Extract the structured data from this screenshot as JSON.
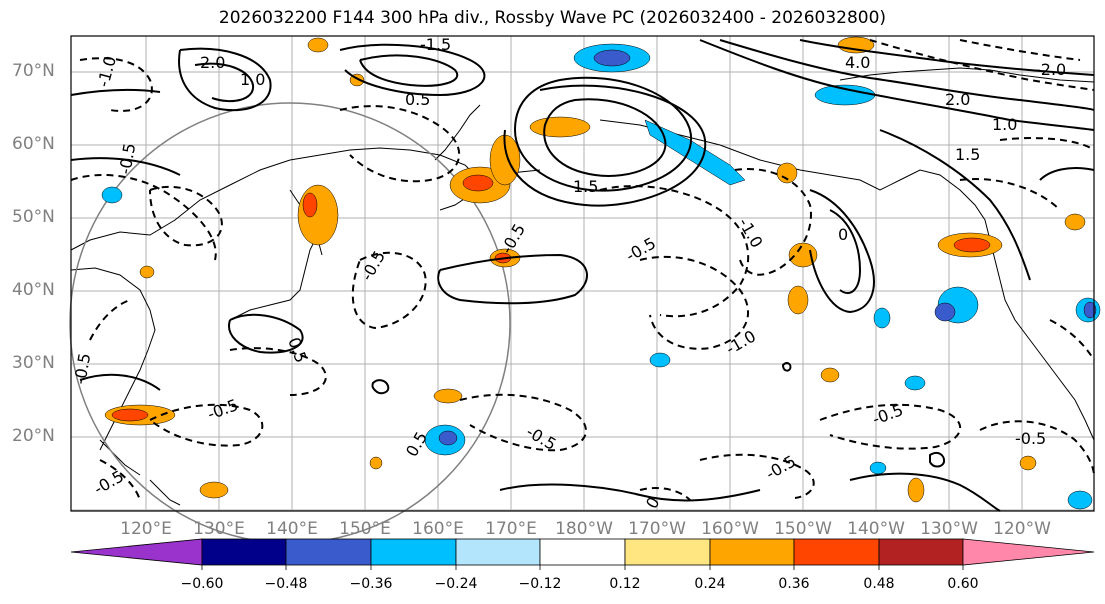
{
  "title": "2026032200 F144 300 hPa div., Rossby Wave PC (2026032400 - 2026032800)",
  "lat_labels": [
    "70°N",
    "60°N",
    "50°N",
    "40°N",
    "30°N",
    "20°N"
  ],
  "lon_labels": [
    "120°E",
    "130°E",
    "140°E",
    "150°E",
    "160°E",
    "170°E",
    "180°W",
    "170°W",
    "160°W",
    "150°W",
    "140°W",
    "130°W",
    "120°W"
  ],
  "colorbar": {
    "ticks": [
      "−0.60",
      "−0.48",
      "−0.36",
      "−0.24",
      "−0.12",
      "0.12",
      "0.24",
      "0.36",
      "0.48",
      "0.60"
    ],
    "colors": [
      "#9933cc",
      "#00008b",
      "#3a5bcc",
      "#00bfff",
      "#b3e5fc",
      "#ffffff",
      "#ffe680",
      "#ffa500",
      "#ff4500",
      "#b22222",
      "#ff88aa"
    ]
  },
  "contour_labels": [
    "-1.0",
    "1.0",
    "2.0",
    "-0.5",
    "0.5",
    "-1.5",
    "1.5",
    "4.0",
    "-2.0",
    "0",
    "-0.5",
    "2.0",
    "1.0",
    "-1.0",
    "-0.5",
    "0.5",
    "-0.5",
    "1.5",
    "-0.5",
    "-1.0",
    "-0.5",
    "0.5",
    "-0.5",
    "-0.5",
    "-0.5",
    "-0.5",
    "-0.5",
    "0"
  ]
}
